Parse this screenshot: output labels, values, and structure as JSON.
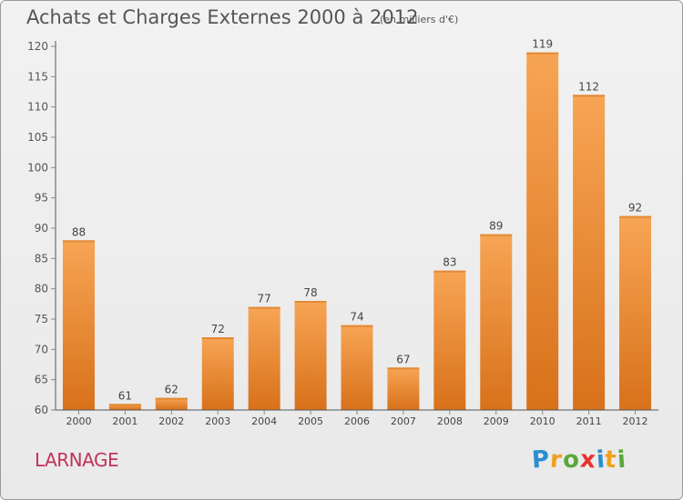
{
  "title": "Achats et Charges Externes 2000 à 2012",
  "subtitle": "(en milliers d'€)",
  "commune": "LARNAGE",
  "logo": {
    "text": "Proxiti",
    "letters": [
      {
        "ch": "P",
        "color": "#2a8fd0"
      },
      {
        "ch": "r",
        "color": "#f0a020"
      },
      {
        "ch": "o",
        "color": "#5aa83c"
      },
      {
        "ch": "x",
        "color": "#e8322e"
      },
      {
        "ch": "i",
        "color": "#2a8fd0"
      },
      {
        "ch": "t",
        "color": "#f0a020"
      },
      {
        "ch": "i",
        "color": "#5aa83c"
      }
    ]
  },
  "colors": {
    "bar_light": "#f7a555",
    "bar_dark": "#d8711a",
    "axis": "#555555",
    "grid_tick": "#888888",
    "commune": "#c0335d"
  },
  "chart_data": {
    "type": "bar",
    "title": "Achats et Charges Externes 2000 à 2012",
    "subtitle": "(en milliers d'€)",
    "categories": [
      "2000",
      "2001",
      "2002",
      "2003",
      "2004",
      "2005",
      "2006",
      "2007",
      "2008",
      "2009",
      "2010",
      "2011",
      "2012"
    ],
    "values": [
      88,
      61,
      62,
      72,
      77,
      78,
      74,
      67,
      83,
      89,
      119,
      112,
      92
    ],
    "ylim": [
      60,
      120
    ],
    "yticks": [
      60,
      65,
      70,
      75,
      80,
      85,
      90,
      95,
      100,
      105,
      110,
      115,
      120
    ],
    "grid": false,
    "legend": "none"
  }
}
